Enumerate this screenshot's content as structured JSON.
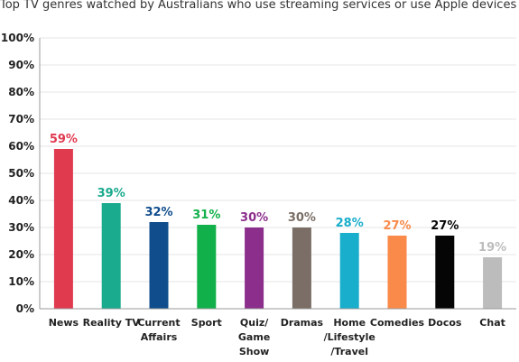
{
  "chart_data": {
    "type": "bar",
    "title": "Top TV genres watched by Australians who use streaming services or use Apple devices",
    "categories": [
      [
        "News"
      ],
      [
        "Reality TV"
      ],
      [
        "Current",
        "Affairs"
      ],
      [
        "Sport"
      ],
      [
        "Quiz/",
        "Game",
        "Show"
      ],
      [
        "Dramas"
      ],
      [
        "Home",
        "/Lifestyle",
        "/Travel"
      ],
      [
        "Comedies"
      ],
      [
        "Docos"
      ],
      [
        "Chat"
      ]
    ],
    "values": [
      59,
      39,
      32,
      31,
      30,
      30,
      28,
      27,
      27,
      19
    ],
    "data_labels": [
      "59%",
      "39%",
      "32%",
      "31%",
      "30%",
      "30%",
      "28%",
      "27%",
      "27%",
      "19%"
    ],
    "colors": [
      "#e03a4f",
      "#1aaa8e",
      "#0f4d8c",
      "#12b04a",
      "#8c2e8c",
      "#7a6e66",
      "#19aecb",
      "#f98a4a",
      "#050505",
      "#bcbcbc"
    ],
    "label_colors": [
      "#e03a4f",
      "#1aaa8e",
      "#0f4d8c",
      "#12b04a",
      "#8c2e8c",
      "#7a6e66",
      "#19aecb",
      "#f98a4a",
      "#050505",
      "#bcbcbc"
    ],
    "ylim": [
      0,
      100
    ],
    "yticks": [
      "0%",
      "10%",
      "20%",
      "30%",
      "40%",
      "50%",
      "60%",
      "70%",
      "80%",
      "90%",
      "100%"
    ],
    "grid": true,
    "legend": "none",
    "xlabel": "",
    "ylabel": ""
  }
}
